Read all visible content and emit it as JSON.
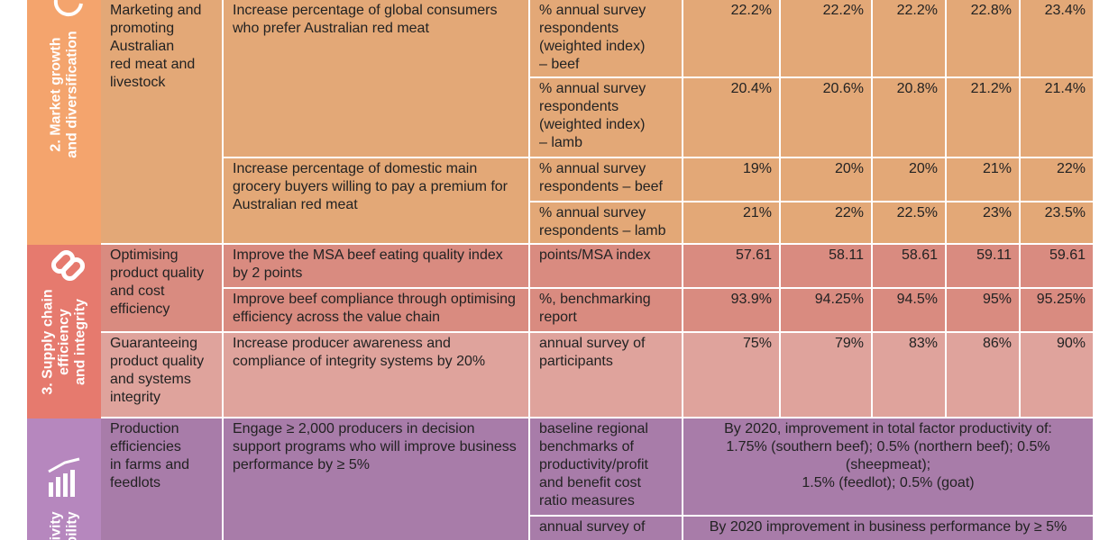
{
  "sections": [
    {
      "theme": [
        "2. Market growth",
        "and diversification"
      ],
      "objectives": [
        {
          "name": "Marketing and\npromoting\nAustralian\nred meat and\nlivestock",
          "kpis": [
            {
              "text": "Increase percentage of global consumers who prefer Australian red meat",
              "measures": [
                {
                  "measure": "% annual survey\nrespondents\n(weighted index)\n– beef",
                  "values": [
                    "22.2%",
                    "22.2%",
                    "22.2%",
                    "22.8%",
                    "23.4%"
                  ]
                },
                {
                  "measure": "% annual survey\nrespondents\n(weighted index)\n– lamb",
                  "values": [
                    "20.4%",
                    "20.6%",
                    "20.8%",
                    "21.2%",
                    "21.4%"
                  ]
                }
              ]
            },
            {
              "text": "Increase percentage of domestic main grocery buyers willing to pay a premium for Australian red meat",
              "measures": [
                {
                  "measure": "% annual survey\nrespondents – beef",
                  "values": [
                    "19%",
                    "20%",
                    "20%",
                    "21%",
                    "22%"
                  ]
                },
                {
                  "measure": "% annual survey\nrespondents – lamb",
                  "values": [
                    "21%",
                    "22%",
                    "22.5%",
                    "23%",
                    "23.5%"
                  ]
                }
              ]
            }
          ]
        }
      ]
    },
    {
      "theme": [
        "3. Supply chain",
        "efficiency",
        "and integrity"
      ],
      "objectives": [
        {
          "name": "Optimising\nproduct quality\nand cost\nefficiency",
          "kpis": [
            {
              "text": "Improve the MSA beef eating quality index by 2 points",
              "measures": [
                {
                  "measure": "points/MSA index",
                  "values": [
                    "57.61",
                    "58.11",
                    "58.61",
                    "59.11",
                    "59.61"
                  ]
                }
              ]
            },
            {
              "text": "Improve beef compliance through optimising efficiency across the value chain",
              "measures": [
                {
                  "measure": "%, benchmarking\nreport",
                  "values": [
                    "93.9%",
                    "94.25%",
                    "94.5%",
                    "95%",
                    "95.25%"
                  ]
                }
              ]
            }
          ]
        },
        {
          "name": "Guaranteeing\nproduct quality\nand systems\nintegrity",
          "kpis": [
            {
              "text": "Increase producer awareness and compliance of integrity systems by 20%",
              "measures": [
                {
                  "measure": "annual survey of\nparticipants",
                  "values": [
                    "75%",
                    "79%",
                    "83%",
                    "86%",
                    "90%"
                  ]
                }
              ]
            }
          ]
        }
      ]
    },
    {
      "theme": [
        "ivity",
        "bility"
      ],
      "objectives": [
        {
          "name": "Production\nefficiencies\nin farms and\nfeedlots",
          "kpis": [
            {
              "text": "Engage ≥ 2,000 producers in decision support programs who will improve business performance by ≥ 5%",
              "measures": [
                {
                  "measure": "baseline regional\nbenchmarks of\nproductivity/profit\nand benefit cost\nratio measures",
                  "target": "By 2020, improvement in total factor productivity of:\n1.75% (southern beef); 0.5% (northern beef); 0.5% (sheepmeat);\n1.5% (feedlot); 0.5% (goat)"
                },
                {
                  "measure": "annual survey of",
                  "target": "By 2020 improvement in business performance by ≥ 5%"
                }
              ]
            }
          ]
        }
      ]
    }
  ]
}
